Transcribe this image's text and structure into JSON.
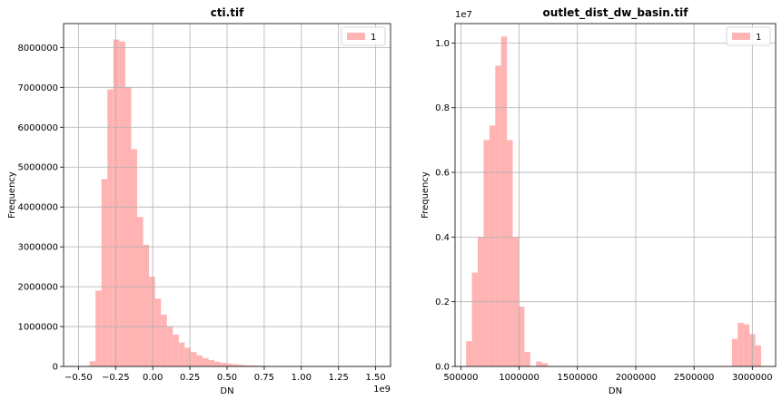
{
  "chart_data": [
    {
      "type": "bar",
      "title": "cti.tif",
      "xlabel": "DN",
      "ylabel": "Frequency",
      "x_offset_text": "1e9",
      "y_offset_text": "",
      "xlim": [
        -0.6,
        1.6
      ],
      "ylim": [
        0,
        8600000
      ],
      "xticks": [
        -0.5,
        -0.25,
        0.0,
        0.25,
        0.5,
        0.75,
        1.0,
        1.25,
        1.5
      ],
      "xtick_labels": [
        "−0.50",
        "−0.25",
        "0.00",
        "0.25",
        "0.50",
        "0.75",
        "1.00",
        "1.25",
        "1.50"
      ],
      "yticks": [
        0,
        1000000,
        2000000,
        3000000,
        4000000,
        5000000,
        6000000,
        7000000,
        8000000
      ],
      "ytick_labels": [
        "0",
        "1000000",
        "2000000",
        "3000000",
        "4000000",
        "5000000",
        "6000000",
        "7000000",
        "8000000"
      ],
      "grid": true,
      "legend": {
        "entries": [
          "1"
        ],
        "placement": "top-right"
      },
      "color": "#ffb3b3",
      "bins": [
        [
          -0.425,
          -0.385,
          130000
        ],
        [
          -0.385,
          -0.345,
          1900000
        ],
        [
          -0.345,
          -0.305,
          4700000
        ],
        [
          -0.305,
          -0.265,
          6950000
        ],
        [
          -0.265,
          -0.225,
          8200000
        ],
        [
          -0.225,
          -0.185,
          8150000
        ],
        [
          -0.185,
          -0.145,
          7000000
        ],
        [
          -0.145,
          -0.105,
          5450000
        ],
        [
          -0.105,
          -0.065,
          3750000
        ],
        [
          -0.065,
          -0.025,
          3050000
        ],
        [
          -0.025,
          0.015,
          2250000
        ],
        [
          0.015,
          0.055,
          1700000
        ],
        [
          0.055,
          0.095,
          1300000
        ],
        [
          0.095,
          0.135,
          1000000
        ],
        [
          0.135,
          0.175,
          800000
        ],
        [
          0.175,
          0.215,
          600000
        ],
        [
          0.215,
          0.255,
          470000
        ],
        [
          0.255,
          0.295,
          360000
        ],
        [
          0.295,
          0.335,
          280000
        ],
        [
          0.335,
          0.375,
          210000
        ],
        [
          0.375,
          0.415,
          160000
        ],
        [
          0.415,
          0.455,
          120000
        ],
        [
          0.455,
          0.495,
          90000
        ],
        [
          0.495,
          0.535,
          70000
        ],
        [
          0.535,
          0.575,
          55000
        ],
        [
          0.575,
          0.615,
          40000
        ],
        [
          0.615,
          0.655,
          30000
        ],
        [
          0.655,
          0.695,
          25000
        ],
        [
          0.695,
          0.735,
          20000
        ],
        [
          0.735,
          0.775,
          15000
        ],
        [
          0.775,
          0.815,
          12000
        ],
        [
          0.815,
          0.855,
          10000
        ],
        [
          0.855,
          0.895,
          8000
        ],
        [
          0.895,
          0.935,
          6000
        ],
        [
          0.935,
          0.975,
          5000
        ],
        [
          0.975,
          1.015,
          4000
        ]
      ]
    },
    {
      "type": "bar",
      "title": "outlet_dist_dw_basin.tif",
      "xlabel": "DN",
      "ylabel": "Frequency",
      "x_offset_text": "",
      "y_offset_text": "1e7",
      "xlim": [
        450000,
        3200000
      ],
      "ylim": [
        0,
        1.06
      ],
      "xticks": [
        500000,
        1000000,
        1500000,
        2000000,
        2500000,
        3000000
      ],
      "xtick_labels": [
        "500000",
        "1000000",
        "1500000",
        "2000000",
        "2500000",
        "3000000"
      ],
      "yticks": [
        0,
        0.2,
        0.4,
        0.6,
        0.8,
        1.0
      ],
      "ytick_labels": [
        "0.0",
        "0.2",
        "0.4",
        "0.6",
        "0.8",
        "1.0"
      ],
      "grid": true,
      "legend": {
        "entries": [
          "1"
        ],
        "placement": "top-right"
      },
      "color": "#ffb3b3",
      "bins": [
        [
          545000,
          595000,
          0.078
        ],
        [
          595000,
          645000,
          0.29
        ],
        [
          645000,
          695000,
          0.4
        ],
        [
          695000,
          745000,
          0.7
        ],
        [
          745000,
          795000,
          0.745
        ],
        [
          795000,
          845000,
          0.93
        ],
        [
          845000,
          895000,
          1.02
        ],
        [
          895000,
          945000,
          0.7
        ],
        [
          945000,
          995000,
          0.4
        ],
        [
          995000,
          1045000,
          0.185
        ],
        [
          1045000,
          1095000,
          0.045
        ],
        [
          1145000,
          1195000,
          0.015
        ],
        [
          1195000,
          1245000,
          0.01
        ],
        [
          2825000,
          2875000,
          0.085
        ],
        [
          2875000,
          2925000,
          0.135
        ],
        [
          2925000,
          2975000,
          0.13
        ],
        [
          2975000,
          3025000,
          0.1
        ],
        [
          3025000,
          3075000,
          0.065
        ]
      ]
    }
  ]
}
